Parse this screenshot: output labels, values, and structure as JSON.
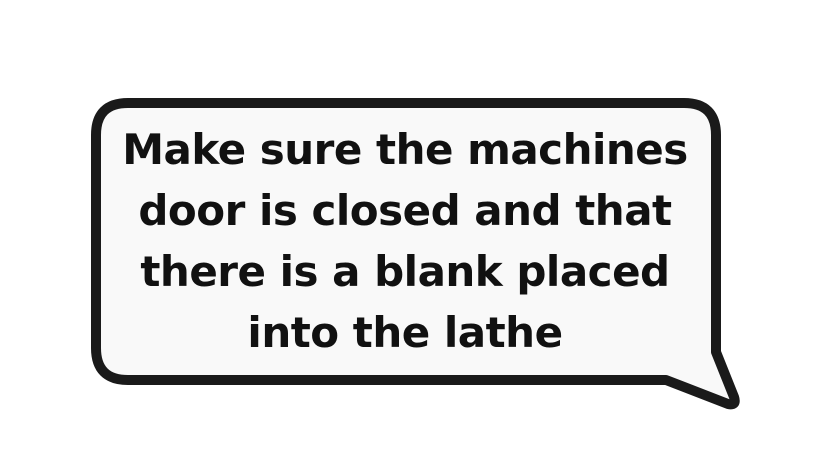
{
  "bubble": {
    "lines": [
      "Make sure the machines",
      "door is closed and that",
      "there is a blank placed",
      "into the lathe"
    ]
  },
  "colors": {
    "fill": "#f9f9f9",
    "stroke": "#1a1a1a",
    "text": "#111111"
  }
}
